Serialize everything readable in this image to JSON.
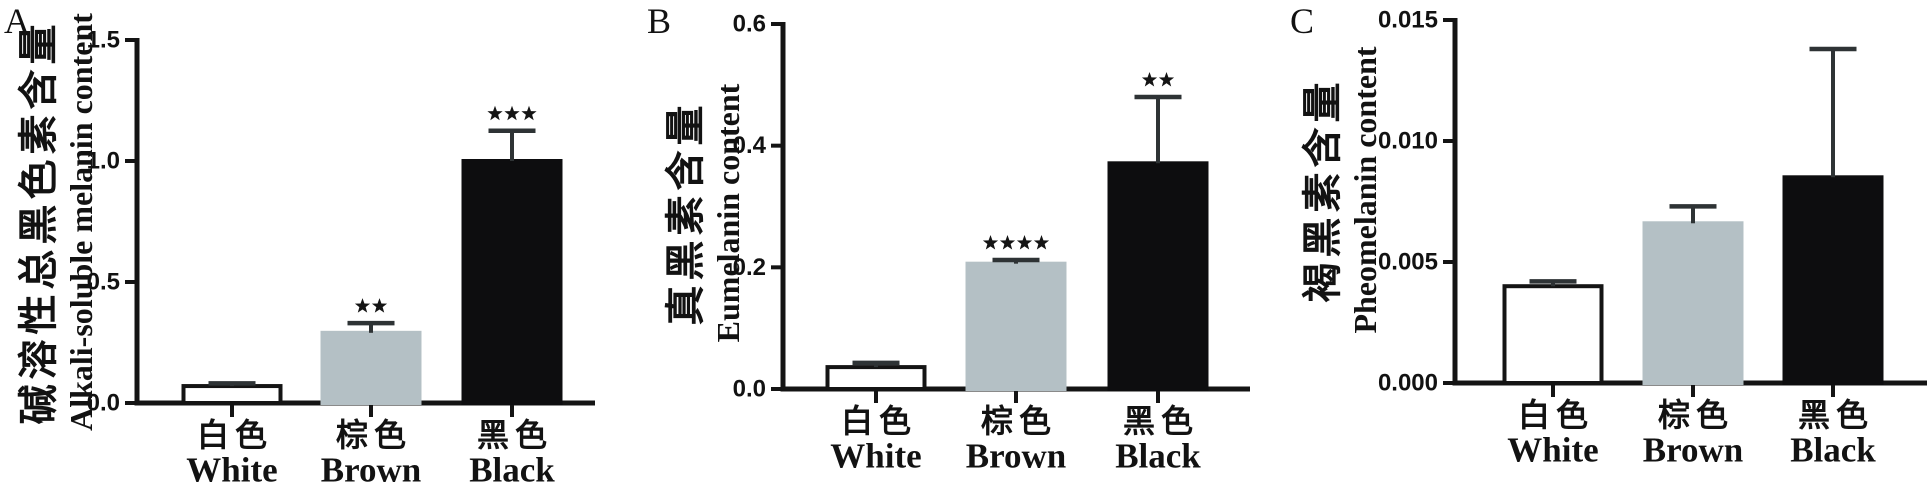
{
  "figure": {
    "description": "Three-panel bar figure comparing melanin content in white, brown and black groups"
  },
  "colors": {
    "background": "#ffffff",
    "axis": "#141414",
    "text": "#121212",
    "bar_fills": [
      "#ffffff",
      "#b4c0c5",
      "#0d0d0f"
    ],
    "bar_edge": "#141414",
    "error_bar": "#2e3335",
    "stars": "#141414"
  },
  "chart_data": [
    {
      "type": "bar",
      "panel": "A",
      "ylabel_cn": "碱溶性总黑色素含量",
      "ylabel_en": "Alkali-soluble melanin content",
      "categories": [
        {
          "cn": "白色",
          "en": "White"
        },
        {
          "cn": "棕色",
          "en": "Brown"
        },
        {
          "cn": "黑色",
          "en": "Black"
        }
      ],
      "values": [
        0.07,
        0.29,
        1.0
      ],
      "errors": [
        0.011,
        0.04,
        0.125
      ],
      "significance": [
        "",
        "**",
        "***"
      ],
      "yticks": [
        {
          "value": 0.0,
          "label": "0.0"
        },
        {
          "value": 0.5,
          "label": "0.5"
        },
        {
          "value": 1.0,
          "label": "1.0"
        },
        {
          "value": 1.5,
          "label": "1.5"
        }
      ],
      "ylim": [
        0,
        1.5
      ],
      "grid": false,
      "legend": "none"
    },
    {
      "type": "bar",
      "panel": "B",
      "ylabel_cn": "真黑素含量",
      "ylabel_en": "Eumelanin content",
      "categories": [
        {
          "cn": "白色",
          "en": "White"
        },
        {
          "cn": "棕色",
          "en": "Brown"
        },
        {
          "cn": "黑色",
          "en": "Black"
        }
      ],
      "values": [
        0.036,
        0.206,
        0.371
      ],
      "errors": [
        0.007,
        0.006,
        0.109
      ],
      "significance": [
        "",
        "****",
        "**"
      ],
      "yticks": [
        {
          "value": 0.0,
          "label": "0.0"
        },
        {
          "value": 0.2,
          "label": "0.2"
        },
        {
          "value": 0.4,
          "label": "0.4"
        },
        {
          "value": 0.6,
          "label": "0.6"
        }
      ],
      "ylim": [
        0,
        0.6
      ],
      "grid": false,
      "legend": "none"
    },
    {
      "type": "bar",
      "panel": "C",
      "ylabel_cn": "褐黑素含量",
      "ylabel_en": "Pheomelanin content",
      "categories": [
        {
          "cn": "白色",
          "en": "White"
        },
        {
          "cn": "棕色",
          "en": "Brown"
        },
        {
          "cn": "黑色",
          "en": "Black"
        }
      ],
      "values": [
        0.004,
        0.0066,
        0.0085
      ],
      "errors": [
        0.0002,
        0.0007,
        0.0053
      ],
      "significance": [
        "",
        "",
        ""
      ],
      "yticks": [
        {
          "value": 0.0,
          "label": "0.000"
        },
        {
          "value": 0.005,
          "label": "0.005"
        },
        {
          "value": 0.01,
          "label": "0.010"
        },
        {
          "value": 0.015,
          "label": "0.015"
        }
      ],
      "ylim": [
        0,
        0.015
      ],
      "grid": false,
      "legend": "none"
    }
  ]
}
